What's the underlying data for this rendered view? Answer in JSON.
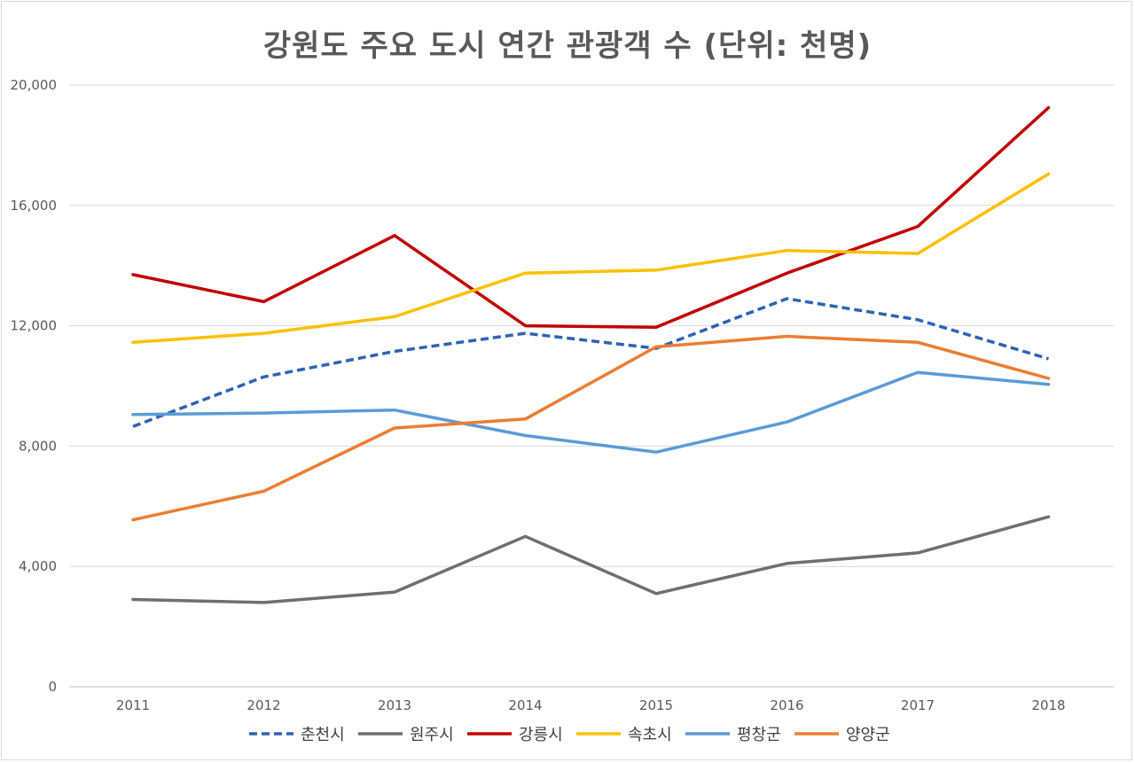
{
  "chart_data": {
    "type": "line",
    "title": "강원도 주요 도시 연간 관광객 수 (단위: 천명)",
    "xlabel": "",
    "ylabel": "",
    "categories": [
      "2011",
      "2012",
      "2013",
      "2014",
      "2015",
      "2016",
      "2017",
      "2018"
    ],
    "ylim": [
      0,
      20000
    ],
    "yticks": [
      0,
      4000,
      8000,
      12000,
      16000,
      20000
    ],
    "ytick_labels": [
      "0",
      "4,000",
      "8,000",
      "12,000",
      "16,000",
      "20,000"
    ],
    "grid": true,
    "legend_position": "bottom",
    "series": [
      {
        "name": "춘천시",
        "color": "#2e63b3",
        "dashed": true,
        "values": [
          8650,
          10300,
          11150,
          11750,
          11250,
          12900,
          12200,
          10900
        ]
      },
      {
        "name": "원주시",
        "color": "#6f6f6f",
        "dashed": false,
        "values": [
          2900,
          2800,
          3150,
          5000,
          3100,
          4100,
          4450,
          5650
        ]
      },
      {
        "name": "강릉시",
        "color": "#c00000",
        "dashed": false,
        "values": [
          13700,
          12800,
          15000,
          12000,
          11950,
          13750,
          15300,
          19250
        ]
      },
      {
        "name": "속초시",
        "color": "#ffc000",
        "dashed": false,
        "values": [
          11450,
          11750,
          12300,
          13750,
          13850,
          14500,
          14400,
          17050
        ]
      },
      {
        "name": "평창군",
        "color": "#5b9bd5",
        "dashed": false,
        "values": [
          9050,
          9100,
          9200,
          8350,
          7800,
          8800,
          10450,
          10050
        ]
      },
      {
        "name": "양양군",
        "color": "#ed7d31",
        "dashed": false,
        "values": [
          5550,
          6500,
          8600,
          8900,
          11300,
          11650,
          11450,
          10250
        ]
      }
    ]
  }
}
